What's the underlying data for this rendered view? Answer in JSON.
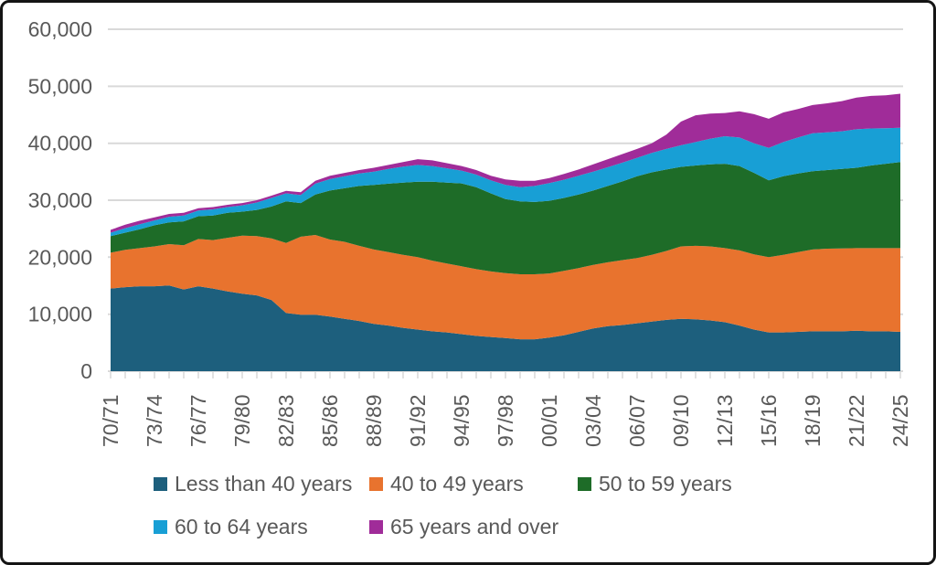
{
  "page": {
    "background": "#ffffff",
    "frame_color": "#141414"
  },
  "chart_data": {
    "type": "area",
    "stacking": "stacked",
    "title": "",
    "xlabel": "",
    "ylabel": "",
    "ylim": [
      0,
      60000
    ],
    "grid": "horizontal",
    "grid_color": "#D9D9D9",
    "axis_text_color": "#595959",
    "legend_position": "bottom",
    "x_tick_label_every": 3,
    "y_ticks": [
      0,
      10000,
      20000,
      30000,
      40000,
      50000,
      60000
    ],
    "y_tick_labels": [
      "0",
      "10,000",
      "20,000",
      "30,000",
      "40,000",
      "50,000",
      "60,000"
    ],
    "x_labels": [
      "70/71",
      "71/72",
      "72/73",
      "73/74",
      "74/75",
      "75/76",
      "76/77",
      "77/78",
      "78/79",
      "79/80",
      "80/81",
      "81/82",
      "82/83",
      "83/84",
      "84/85",
      "85/86",
      "86/87",
      "87/88",
      "88/89",
      "89/90",
      "90/91",
      "91/92",
      "92/93",
      "93/94",
      "94/95",
      "95/96",
      "96/97",
      "97/98",
      "98/99",
      "99/00",
      "00/01",
      "01/02",
      "02/03",
      "03/04",
      "04/05",
      "05/06",
      "06/07",
      "07/08",
      "08/09",
      "09/10",
      "10/11",
      "11/12",
      "12/13",
      "13/14",
      "14/15",
      "15/16",
      "16/17",
      "17/18",
      "18/19",
      "19/20",
      "20/21",
      "21/22",
      "22/23",
      "23/24",
      "24/25"
    ],
    "series": [
      {
        "name": "Less than 40 years",
        "color": "#1D5F7D",
        "values": [
          14500,
          14750,
          14900,
          14900,
          15050,
          14350,
          14900,
          14500,
          14000,
          13600,
          13300,
          12500,
          10200,
          9900,
          9900,
          9600,
          9200,
          8800,
          8300,
          8000,
          7600,
          7300,
          7000,
          6800,
          6500,
          6200,
          6000,
          5800,
          5600,
          5600,
          5900,
          6300,
          6900,
          7500,
          7900,
          8100,
          8400,
          8700,
          9000,
          9200,
          9100,
          8900,
          8600,
          8000,
          7300,
          6800,
          6800,
          6900,
          7000,
          7000,
          7000,
          7100,
          7000,
          7000,
          6900
        ]
      },
      {
        "name": "40 to 49 years",
        "color": "#E8732E",
        "values": [
          6300,
          6550,
          6700,
          7000,
          7250,
          7750,
          8300,
          8500,
          9400,
          10200,
          10400,
          10800,
          12300,
          13700,
          14000,
          13500,
          13500,
          13200,
          13050,
          12900,
          12800,
          12700,
          12400,
          12100,
          11900,
          11700,
          11500,
          11400,
          11400,
          11400,
          11250,
          11300,
          11200,
          11150,
          11200,
          11400,
          11450,
          11700,
          12100,
          12700,
          12900,
          13000,
          13000,
          13200,
          13200,
          13200,
          13600,
          14000,
          14350,
          14500,
          14550,
          14500,
          14600,
          14600,
          14700
        ]
      },
      {
        "name": "50 to 59 years",
        "color": "#1E6C28",
        "values": [
          2900,
          3000,
          3300,
          3700,
          3800,
          4200,
          4000,
          4300,
          4400,
          4200,
          4600,
          5600,
          7300,
          5900,
          7100,
          8600,
          9400,
          10500,
          11350,
          12000,
          12700,
          13250,
          13850,
          14200,
          14550,
          14400,
          13700,
          13000,
          12800,
          12700,
          12750,
          12800,
          12900,
          13050,
          13400,
          13800,
          14350,
          14500,
          14300,
          13950,
          14100,
          14400,
          14800,
          14800,
          14300,
          13500,
          13800,
          13800,
          13750,
          13800,
          13950,
          14100,
          14500,
          14800,
          15100
        ]
      },
      {
        "name": "60 to 64 years",
        "color": "#189FD5",
        "values": [
          600,
          800,
          900,
          850,
          1000,
          1000,
          1000,
          1100,
          1000,
          1100,
          1300,
          1500,
          1400,
          1400,
          1900,
          2000,
          2100,
          2200,
          2300,
          2600,
          2800,
          2950,
          2750,
          2500,
          2250,
          2200,
          2300,
          2500,
          2500,
          2800,
          3100,
          3200,
          3300,
          3300,
          3300,
          3300,
          3250,
          3400,
          3600,
          3800,
          4100,
          4500,
          4830,
          5000,
          5200,
          5700,
          6000,
          6300,
          6660,
          6600,
          6600,
          6750,
          6500,
          6250,
          6020
        ]
      },
      {
        "name": "65 years and over",
        "color": "#A02C99",
        "values": [
          500,
          600,
          600,
          550,
          500,
          500,
          400,
          400,
          400,
          400,
          400,
          400,
          450,
          500,
          500,
          600,
          600,
          600,
          700,
          700,
          800,
          1000,
          1000,
          900,
          800,
          800,
          800,
          950,
          1100,
          900,
          900,
          1000,
          1100,
          1300,
          1400,
          1500,
          1550,
          1700,
          2500,
          4150,
          4700,
          4400,
          4070,
          4600,
          5100,
          5100,
          5200,
          5000,
          4940,
          5100,
          5300,
          5550,
          5700,
          5750,
          5980
        ]
      }
    ]
  }
}
